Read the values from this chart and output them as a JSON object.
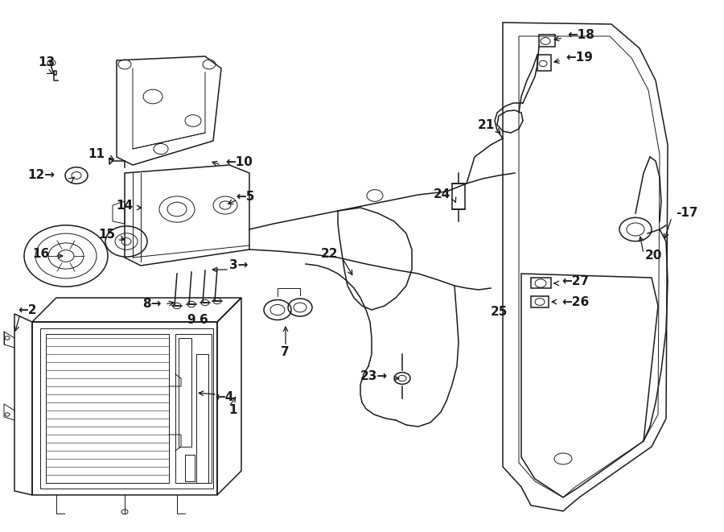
{
  "bg_color": "#ffffff",
  "line_color": "#1a1a1a",
  "fig_width": 9.0,
  "fig_height": 6.61,
  "dpi": 100,
  "lw_main": 1.1,
  "lw_thin": 0.7,
  "lw_thick": 1.6
}
